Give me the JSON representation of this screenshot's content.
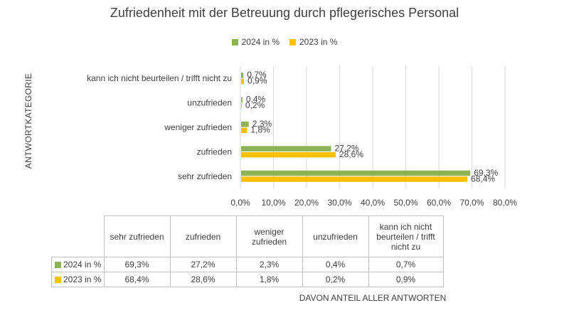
{
  "chart_data": {
    "type": "bar",
    "orientation": "horizontal",
    "title": "Zufriedenheit mit der Betreuung durch pflegerisches Personal",
    "ylabel": "ANTWORTKATEGORIE",
    "xlabel": "DAVON ANTEIL ALLER ANTWORTEN",
    "categories": [
      "sehr zufrieden",
      "zufrieden",
      "weniger zufrieden",
      "unzufrieden",
      "kann ich nicht beurteilen / trifft nicht zu"
    ],
    "table_headers": [
      "sehr zufrieden",
      "zufrieden",
      "weniger zufrieden",
      "unzufrieden",
      "kann ich nicht beurteilen / trifft nicht zu"
    ],
    "series": [
      {
        "name": "2024 in %",
        "color": "#8db255",
        "values": [
          69.3,
          27.2,
          2.3,
          0.4,
          0.7
        ],
        "labels": [
          "69,3%",
          "27,2%",
          "2,3%",
          "0,4%",
          "0,7%"
        ]
      },
      {
        "name": "2023 in %",
        "color": "#ffc000",
        "values": [
          68.4,
          28.6,
          1.8,
          0.2,
          0.9
        ],
        "labels": [
          "68,4%",
          "28,6%",
          "1,8%",
          "0,2%",
          "0,9%"
        ]
      }
    ],
    "xlim": [
      0,
      80
    ],
    "xticks": [
      0,
      10,
      20,
      30,
      40,
      50,
      60,
      70,
      80
    ],
    "xtick_labels": [
      "0,0%",
      "10,0%",
      "20,0%",
      "30,0%",
      "40,0%",
      "50,0%",
      "60,0%",
      "70,0%",
      "80,0%"
    ],
    "grid": true,
    "legend_position": "top-center"
  }
}
